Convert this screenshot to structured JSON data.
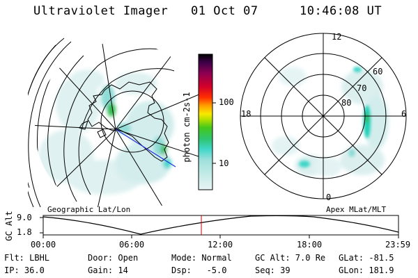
{
  "header": {
    "instrument": "Ultraviolet Imager",
    "date": "01 Oct 07",
    "time": "10:46:08 UT"
  },
  "colorbar": {
    "label": "photon cm-2s-1",
    "ticks": [
      "100",
      "10"
    ]
  },
  "polar_plot": {
    "mlt_labels": {
      "top": "12",
      "left": "18",
      "right": "6",
      "bottom": "0"
    },
    "lat_labels": [
      "60",
      "70",
      "80"
    ]
  },
  "timeline": {
    "left_caption": "Geographic Lat/Lon",
    "right_caption": "Apex MLat/MLT",
    "ylabel": "GC Alt",
    "y_ticks": [
      "9.0",
      "1.8"
    ],
    "x_ticks": [
      "00:00",
      "06:00",
      "12:00",
      "18:00",
      "23:59"
    ]
  },
  "info": {
    "row1": {
      "flt": "Flt: LBHL",
      "door": "Door: Open",
      "mode": "Mode: Normal",
      "gcalt": "GC Alt: 7.0 Re",
      "glat": "GLat: -81.5"
    },
    "row2": {
      "ip": "IP: 36.0",
      "gain": "Gain: 14",
      "dsp": "Dsp:   -5.0",
      "seq": "Seq: 39",
      "glon": "GLon: 181.9"
    }
  },
  "colors": {
    "colorbar_stops": [
      "#e8f4f4",
      "#c8ece8",
      "#9fe0dc",
      "#3fd6c8",
      "#2ec46a",
      "#46c81a",
      "#b8e000",
      "#f8e800",
      "#ffa000",
      "#ff3000",
      "#d4002a",
      "#8c0052",
      "#3c0048",
      "#000000"
    ],
    "marker": "#cc0000",
    "aurora_light": "#d6eeee",
    "aurora_mid": "#8fdcd6",
    "aurora_strong": "#1fd0b8",
    "aurora_green": "#2dba4e"
  }
}
